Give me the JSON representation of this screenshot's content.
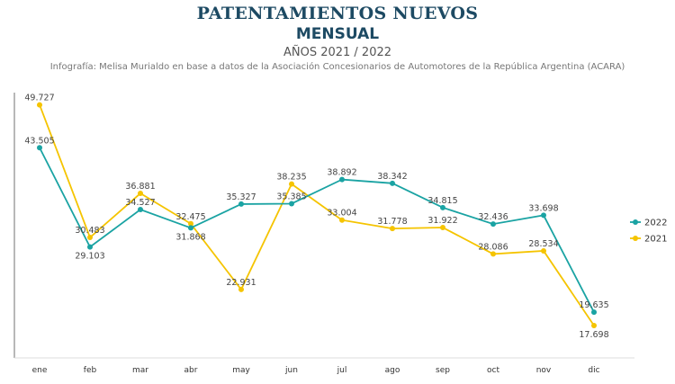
{
  "chart_data": {
    "type": "line",
    "title": "PATENTAMIENTOS NUEVOS",
    "subtitle": "MENSUAL",
    "subtitle2": "AÑOS 2021 / 2022",
    "caption": "Infografía: Melisa Murialdo en base a datos de la Asociación Concesionarios de Automotores de la República Argentina (ACARA)",
    "categories": [
      "ene",
      "feb",
      "mar",
      "abr",
      "may",
      "jun",
      "jul",
      "ago",
      "sep",
      "oct",
      "nov",
      "dic"
    ],
    "series": [
      {
        "name": "2022",
        "color": "#1aa3a3",
        "values": [
          43.505,
          29.103,
          34.527,
          31.868,
          35.327,
          35.385,
          38.892,
          38.342,
          34.815,
          32.436,
          33.698,
          19.635
        ],
        "labels": [
          "43.505",
          "29.103",
          "34.527",
          "31.868",
          "35.327",
          "35.385",
          "38.892",
          "38.342",
          "34.815",
          "32.436",
          "33.698",
          "19.635"
        ]
      },
      {
        "name": "2021",
        "color": "#f5c400",
        "values": [
          49.727,
          30.483,
          36.881,
          32.475,
          22.931,
          38.235,
          33.004,
          31.778,
          31.922,
          28.086,
          28.534,
          17.698
        ],
        "labels": [
          "49.727",
          "30.483",
          "36.881",
          "32.475",
          "22.931",
          "38.235",
          "33.004",
          "31.778",
          "31.922",
          "28.086",
          "28.534",
          "17.698"
        ]
      }
    ],
    "ylim": [
      13,
      51.5
    ],
    "grid": false,
    "legend": "right"
  }
}
